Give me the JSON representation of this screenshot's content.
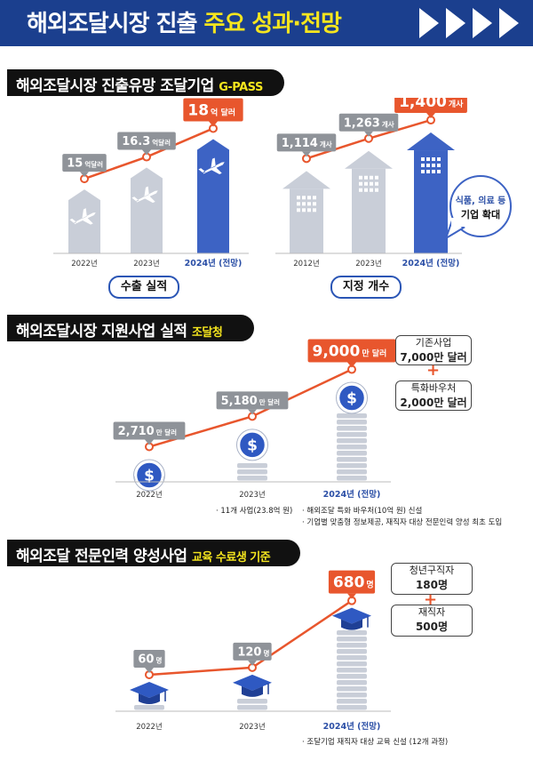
{
  "header": {
    "title_part1": "해외조달시장 진출",
    "title_part2": "주요 성과·전망"
  },
  "sections": {
    "gpass": {
      "title": "해외조달시장 진출유망 조달기업",
      "subtitle": "G-PASS"
    },
    "support": {
      "title": "해외조달시장 지원사업 실적",
      "subtitle": "조달청"
    },
    "training": {
      "title": "해외조달 전문인력 양성사업",
      "subtitle": "교육 수료생 기준"
    }
  },
  "chart_data": [
    {
      "type": "line",
      "title": "수출 실적",
      "categories": [
        "2022년",
        "2023년",
        "2024년 (전망)"
      ],
      "values": [
        15,
        16.3,
        18
      ],
      "value_labels": [
        {
          "num": "15",
          "unit": "억달러"
        },
        {
          "num": "16.3",
          "unit": "억달러"
        },
        {
          "num": "18",
          "unit": "억 달러"
        }
      ],
      "colors": {
        "line": "#e8562d",
        "past": "#c9ced8",
        "current": "#3d63c4"
      }
    },
    {
      "type": "line",
      "title": "지정 개수",
      "categories": [
        "2012년",
        "2023년",
        "2024년 (전망)"
      ],
      "values": [
        1114,
        1263,
        1400
      ],
      "value_labels": [
        {
          "num": "1,114",
          "unit": "개사"
        },
        {
          "num": "1,263",
          "unit": "개사"
        },
        {
          "num": "1,400",
          "unit": "개사"
        }
      ],
      "callout": [
        "식품, 의료 등",
        "기업 확대"
      ]
    },
    {
      "type": "line",
      "categories": [
        "2022년",
        "2023년",
        "2024년 (전망)"
      ],
      "values": [
        2710,
        5180,
        9000
      ],
      "value_labels": [
        {
          "num": "2,710",
          "unit": "만 달러"
        },
        {
          "num": "5,180",
          "unit": "만 달러"
        },
        {
          "num": "9,000",
          "unit": "만 달러"
        }
      ],
      "breakdown": [
        {
          "label": "기존사업",
          "value": "7,000만 달러"
        },
        {
          "label": "특화바우처",
          "value": "2,000만 달러"
        }
      ],
      "notes": {
        "y2023": [
          "· 11개 사업(23.8억 원)"
        ],
        "y2024": [
          "· 해외조달 특화 바우처(10억 원) 신설",
          "· 기업별 맞춤형 정보제공, 재직자 대상 전문인력 양성 최초 도입"
        ]
      }
    },
    {
      "type": "line",
      "categories": [
        "2022년",
        "2023년",
        "2024년 (전망)"
      ],
      "values": [
        60,
        120,
        680
      ],
      "value_labels": [
        {
          "num": "60",
          "unit": "명"
        },
        {
          "num": "120",
          "unit": "명"
        },
        {
          "num": "680",
          "unit": "명"
        }
      ],
      "breakdown": [
        {
          "label": "청년구직자",
          "value": "180명"
        },
        {
          "label": "재직자",
          "value": "500명"
        }
      ],
      "notes": {
        "y2024": [
          "· 조달기업 재직자 대상 교육 신설 (12개 과정)"
        ]
      }
    }
  ]
}
